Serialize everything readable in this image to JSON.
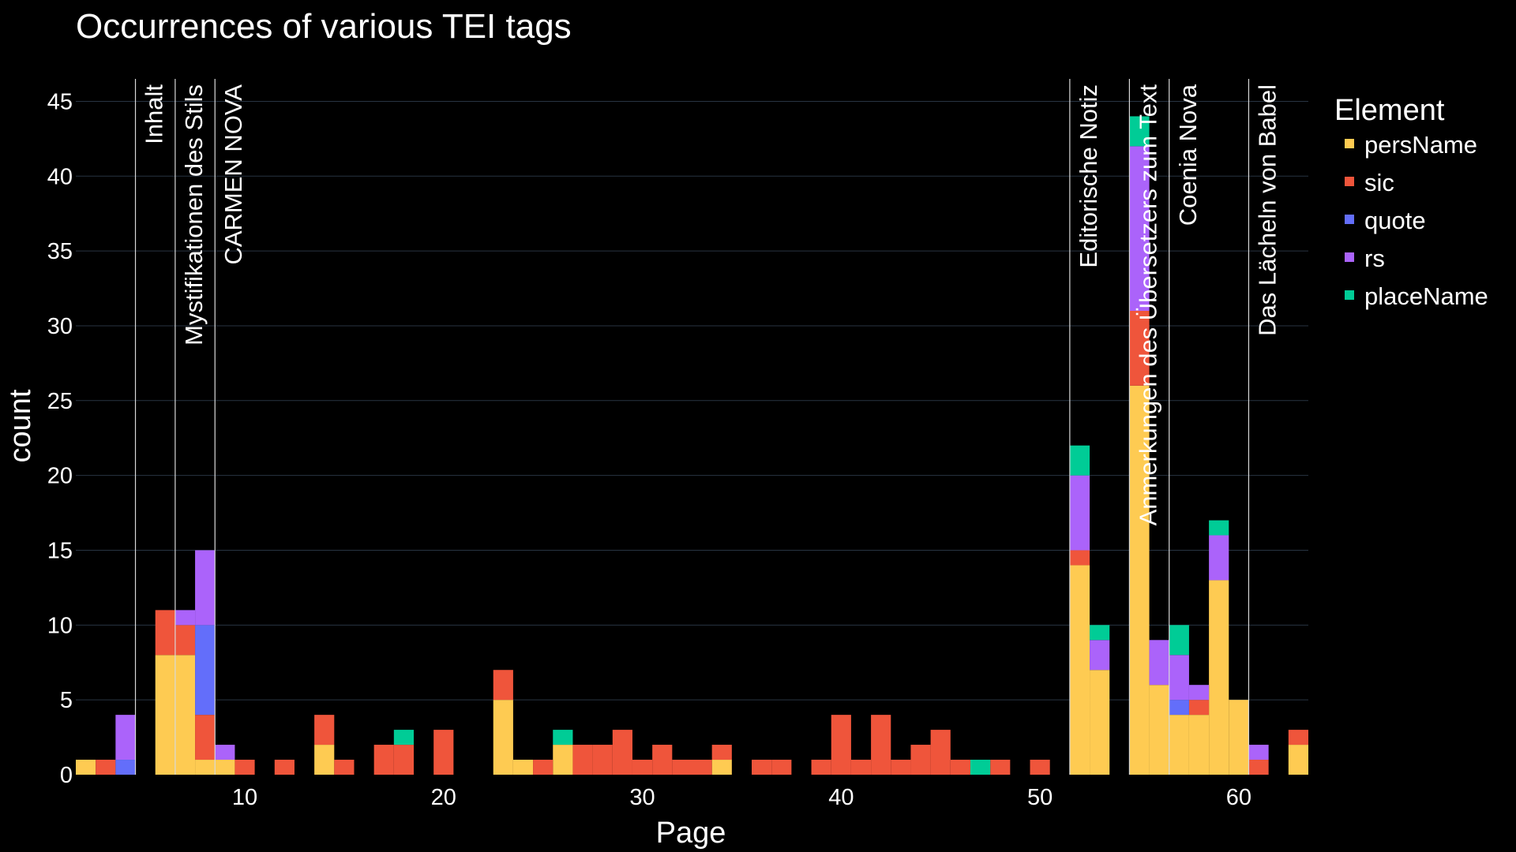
{
  "chart_data": {
    "type": "bar",
    "stacked": true,
    "title": "Occurrences of various TEI tags",
    "xlabel": "Page",
    "ylabel": "count",
    "xlim": [
      1.5,
      63.5
    ],
    "ylim": [
      0,
      46.5
    ],
    "x_ticks": [
      10,
      20,
      30,
      40,
      50,
      60
    ],
    "y_ticks": [
      0,
      5,
      10,
      15,
      20,
      25,
      30,
      35,
      40,
      45
    ],
    "grid": true,
    "legend": {
      "title": "Element",
      "placement": "right"
    },
    "series": [
      {
        "name": "persName",
        "color": "#FECB52",
        "points": [
          [
            2,
            1
          ],
          [
            6,
            8
          ],
          [
            7,
            8
          ],
          [
            8,
            1
          ],
          [
            9,
            1
          ],
          [
            14,
            2
          ],
          [
            23,
            5
          ],
          [
            24,
            1
          ],
          [
            26,
            2
          ],
          [
            34,
            1
          ],
          [
            52,
            14
          ],
          [
            53,
            7
          ],
          [
            55,
            26
          ],
          [
            56,
            6
          ],
          [
            57,
            4
          ],
          [
            58,
            4
          ],
          [
            59,
            13
          ],
          [
            60,
            5
          ],
          [
            63,
            2
          ]
        ]
      },
      {
        "name": "sic",
        "color": "#EF553B",
        "points": [
          [
            3,
            1
          ],
          [
            6,
            3
          ],
          [
            7,
            2
          ],
          [
            8,
            3
          ],
          [
            10,
            1
          ],
          [
            12,
            1
          ],
          [
            14,
            2
          ],
          [
            15,
            1
          ],
          [
            17,
            2
          ],
          [
            18,
            2
          ],
          [
            20,
            3
          ],
          [
            23,
            2
          ],
          [
            25,
            1
          ],
          [
            27,
            2
          ],
          [
            28,
            2
          ],
          [
            29,
            3
          ],
          [
            30,
            1
          ],
          [
            31,
            2
          ],
          [
            32,
            1
          ],
          [
            33,
            1
          ],
          [
            34,
            1
          ],
          [
            36,
            1
          ],
          [
            37,
            1
          ],
          [
            39,
            1
          ],
          [
            40,
            4
          ],
          [
            41,
            1
          ],
          [
            42,
            4
          ],
          [
            43,
            1
          ],
          [
            44,
            2
          ],
          [
            45,
            3
          ],
          [
            46,
            1
          ],
          [
            48,
            1
          ],
          [
            50,
            1
          ],
          [
            52,
            1
          ],
          [
            55,
            5
          ],
          [
            58,
            1
          ],
          [
            61,
            1
          ],
          [
            63,
            1
          ]
        ]
      },
      {
        "name": "quote",
        "color": "#636EFA",
        "points": [
          [
            4,
            1
          ],
          [
            8,
            6
          ],
          [
            57,
            1
          ]
        ]
      },
      {
        "name": "rs",
        "color": "#AB63FA",
        "points": [
          [
            4,
            3
          ],
          [
            7,
            1
          ],
          [
            8,
            5
          ],
          [
            9,
            1
          ],
          [
            52,
            5
          ],
          [
            53,
            2
          ],
          [
            55,
            11
          ],
          [
            56,
            3
          ],
          [
            57,
            3
          ],
          [
            58,
            1
          ],
          [
            59,
            3
          ],
          [
            61,
            1
          ]
        ]
      },
      {
        "name": "placeName",
        "color": "#00CC96",
        "points": [
          [
            18,
            1
          ],
          [
            26,
            1
          ],
          [
            47,
            1
          ],
          [
            52,
            2
          ],
          [
            53,
            1
          ],
          [
            55,
            2
          ],
          [
            57,
            2
          ],
          [
            59,
            1
          ]
        ]
      }
    ],
    "annotations": [
      {
        "x": 4.5,
        "label": "Inhalt"
      },
      {
        "x": 6.5,
        "label": "Mystifikationen des Stils"
      },
      {
        "x": 8.5,
        "label": "CARMEN NOVA"
      },
      {
        "x": 51.5,
        "label": "Editorische Notiz"
      },
      {
        "x": 54.5,
        "label": "Anmerkungen des Übersetzers zum Text"
      },
      {
        "x": 56.5,
        "label": "Coenia Nova"
      },
      {
        "x": 60.5,
        "label": "Das Lächeln von Babel"
      }
    ]
  }
}
